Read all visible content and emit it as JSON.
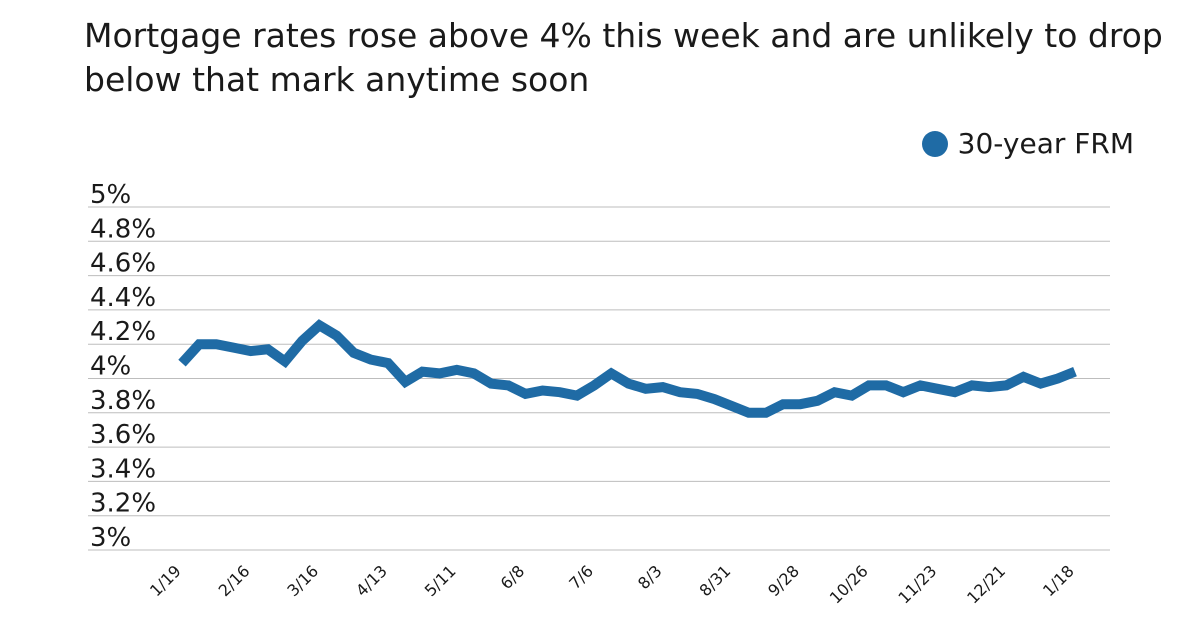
{
  "title": "Mortgage rates rose above 4% this week and are unlikely to drop below that mark anytime soon",
  "legend": {
    "label": "30-year FRM",
    "color": "#1f6ba5"
  },
  "chart_data": {
    "type": "line",
    "title": "Mortgage rates rose above 4% this week and are unlikely to drop below that mark anytime soon",
    "xlabel": "",
    "ylabel": "",
    "ylim": [
      3.0,
      5.0
    ],
    "yticks": [
      "5%",
      "4.8%",
      "4.6%",
      "4.4%",
      "4.2%",
      "4%",
      "3.8%",
      "3.6%",
      "3.4%",
      "3.2%",
      "3%"
    ],
    "ytick_values": [
      5.0,
      4.8,
      4.6,
      4.4,
      4.2,
      4.0,
      3.8,
      3.6,
      3.4,
      3.2,
      3.0
    ],
    "xtick_labels": [
      "1/19",
      "2/16",
      "3/16",
      "4/13",
      "5/11",
      "6/8",
      "7/6",
      "8/3",
      "8/31",
      "9/28",
      "10/26",
      "11/23",
      "12/21",
      "1/18"
    ],
    "grid": true,
    "legend_position": "top-right",
    "series": [
      {
        "name": "30-year FRM",
        "color": "#1f6ba5",
        "values": [
          4.09,
          4.2,
          4.2,
          4.18,
          4.16,
          4.17,
          4.1,
          4.22,
          4.31,
          4.25,
          4.15,
          4.11,
          4.09,
          3.98,
          4.04,
          4.03,
          4.05,
          4.03,
          3.97,
          3.96,
          3.91,
          3.93,
          3.92,
          3.9,
          3.96,
          4.03,
          3.97,
          3.94,
          3.95,
          3.92,
          3.91,
          3.88,
          3.84,
          3.8,
          3.8,
          3.85,
          3.85,
          3.87,
          3.92,
          3.9,
          3.96,
          3.96,
          3.92,
          3.96,
          3.94,
          3.92,
          3.96,
          3.95,
          3.96,
          4.01,
          3.97,
          4.0,
          4.04
        ]
      }
    ]
  }
}
